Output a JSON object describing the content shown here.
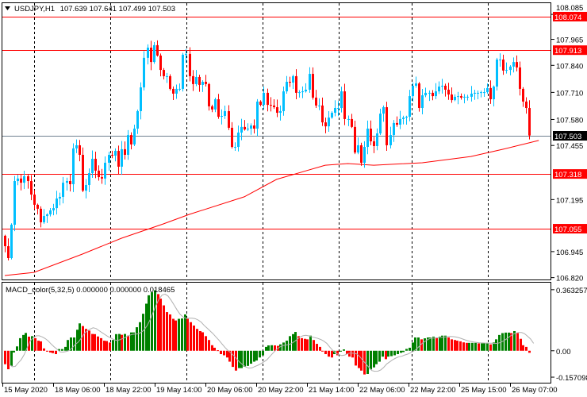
{
  "header": {
    "symbol": "USDJPY,H1",
    "open": "107.639",
    "high": "107.641",
    "low": "107.499",
    "close": "107.503"
  },
  "price_axis": {
    "ticks": [
      "108.085",
      "107.965",
      "107.840",
      "107.710",
      "107.580",
      "107.455",
      "107.195",
      "106.945",
      "106.820"
    ]
  },
  "levels": [
    {
      "price": "108.074"
    },
    {
      "price": "107.913"
    },
    {
      "price": "107.318"
    },
    {
      "price": "107.055"
    }
  ],
  "current_price": "107.503",
  "indicator": {
    "label": "MACD_color(5,32,5) 0.000000 0.000000 0.018465",
    "axis": [
      {
        "label": "0.363257",
        "value": 0.363257
      },
      {
        "label": "0.00",
        "value": 0
      },
      {
        "label": "-0.157098",
        "value": -0.157098
      }
    ]
  },
  "time_axis": [
    "15 May 2020",
    "18 May 06:00",
    "18 May 22:00",
    "19 May 14:00",
    "20 May 06:00",
    "20 May 22:00",
    "21 May 14:00",
    "22 May 06:00",
    "22 May 22:00",
    "25 May 15:00",
    "26 May 07:00"
  ],
  "colors": {
    "bull": "#00bfff",
    "bear": "#ff0000",
    "level": "#ff0000",
    "ma": "#ff0000",
    "current": "#708090",
    "macd_up": "#008000",
    "macd_down": "#ff0000",
    "signal": "#b0b0b0"
  },
  "chart_data": {
    "type": "candlestick",
    "title": "USDJPY,H1",
    "ylim": [
      106.811,
      108.154
    ],
    "closes": [
      106.971,
      106.914,
      107.074,
      107.284,
      107.296,
      107.276,
      107.307,
      107.284,
      107.219,
      107.17,
      107.151,
      107.086,
      107.116,
      107.124,
      107.143,
      107.154,
      107.2,
      107.208,
      107.276,
      107.284,
      107.269,
      107.441,
      107.456,
      107.41,
      107.238,
      107.265,
      107.322,
      107.391,
      107.334,
      107.303,
      107.296,
      107.372,
      107.41,
      107.406,
      107.429,
      107.353,
      107.437,
      107.41,
      107.505,
      107.46,
      107.536,
      107.62,
      107.734,
      107.876,
      107.925,
      107.856,
      107.937,
      107.887,
      107.818,
      107.788,
      107.788,
      107.727,
      107.704,
      107.727,
      107.727,
      107.891,
      107.895,
      107.788,
      107.75,
      107.784,
      107.746,
      107.761,
      107.75,
      107.643,
      107.628,
      107.677,
      107.593,
      107.597,
      107.62,
      107.54,
      107.448,
      107.448,
      107.517,
      107.544,
      107.532,
      107.536,
      107.551,
      107.536,
      107.666,
      107.65,
      107.708,
      107.65,
      107.647,
      107.639,
      107.612,
      107.62,
      107.715,
      107.761,
      107.757,
      107.788,
      107.708,
      107.711,
      107.715,
      107.723,
      107.799,
      107.685,
      107.647,
      107.647,
      107.566,
      107.547,
      107.589,
      107.612,
      107.635,
      107.635,
      107.715,
      107.582,
      107.582,
      107.544,
      107.421,
      107.456,
      107.372,
      107.448,
      107.536,
      107.475,
      107.452,
      107.513,
      107.608,
      107.639,
      107.456,
      107.505,
      107.563,
      107.555,
      107.582,
      107.589,
      107.593,
      107.692,
      107.742,
      107.753,
      107.635,
      107.696,
      107.708,
      107.708,
      107.692,
      107.715,
      107.738,
      107.742,
      107.723,
      107.7,
      107.673,
      107.689,
      107.692,
      107.685,
      107.689,
      107.689,
      107.704,
      107.708,
      107.708,
      107.711,
      107.711,
      107.731,
      107.677,
      107.738,
      107.868,
      107.868,
      107.815,
      107.818,
      107.834,
      107.856,
      107.83,
      107.727,
      107.666,
      107.635,
      107.503
    ],
    "ma_points": [
      [
        0,
        106.83
      ],
      [
        9,
        106.845
      ],
      [
        24,
        106.933
      ],
      [
        36,
        107.009
      ],
      [
        49,
        107.078
      ],
      [
        57,
        107.124
      ],
      [
        74,
        107.208
      ],
      [
        84,
        107.292
      ],
      [
        99,
        107.36
      ],
      [
        106,
        107.368
      ],
      [
        114,
        107.36
      ],
      [
        129,
        107.372
      ],
      [
        144,
        107.402
      ],
      [
        154,
        107.437
      ],
      [
        165,
        107.479
      ]
    ],
    "macd_ylim": [
      -0.19,
      0.405
    ],
    "macd_hist": [
      -0.08,
      -0.11,
      -0.09,
      -0.01,
      0.026,
      0.075,
      0.094,
      0.106,
      0.084,
      0.087,
      0.075,
      0.06,
      0.056,
      0.014,
      -0.005,
      -0.01,
      -0.014,
      -0.02,
      0.01,
      0.01,
      0.023,
      0.064,
      0.079,
      0.079,
      0.125,
      0.163,
      0.147,
      0.13,
      0.12,
      0.1,
      0.099,
      0.085,
      0.075,
      0.06,
      0.058,
      0.049,
      0.064,
      0.099,
      0.1,
      0.095,
      0.1,
      0.09,
      0.109,
      0.109,
      0.14,
      0.17,
      0.22,
      0.28,
      0.33,
      0.348,
      0.36,
      0.337,
      0.31,
      0.27,
      0.23,
      0.216,
      0.19,
      0.18,
      0.19,
      0.192,
      0.216,
      0.19,
      0.17,
      0.15,
      0.13,
      0.117,
      0.11,
      0.087,
      0.064,
      0.033,
      0.018,
      0.003,
      -0.02,
      -0.027,
      -0.04,
      -0.065,
      -0.096,
      -0.118,
      -0.103,
      -0.103,
      -0.095,
      -0.09,
      -0.077,
      -0.065,
      -0.058,
      -0.04,
      -0.027,
      0.023,
      0.032,
      0.033,
      0.032,
      0.029,
      0.038,
      0.049,
      0.06,
      0.087,
      0.099,
      0.112,
      0.087,
      0.075,
      0.071,
      0.068,
      0.09,
      0.064,
      0.041,
      0.023,
      0.0,
      -0.02,
      -0.035,
      -0.04,
      -0.02,
      -0.027,
      -0.005,
      0.008,
      -0.02,
      -0.035,
      -0.04,
      -0.088,
      -0.103,
      -0.118,
      -0.141,
      -0.138,
      -0.111,
      -0.099,
      -0.08,
      -0.065,
      -0.035,
      -0.05,
      -0.035,
      -0.032,
      -0.027,
      -0.02,
      -0.012,
      -0.008,
      0.011,
      0.018,
      0.049,
      0.079,
      0.079,
      0.068,
      0.074,
      0.079,
      0.079,
      0.084,
      0.079,
      0.084,
      0.09,
      0.09,
      0.079,
      0.068,
      0.064,
      0.06,
      0.056,
      0.05,
      0.047,
      0.047,
      0.047,
      0.047,
      0.044,
      0.044,
      0.044,
      0.047,
      0.038,
      0.049,
      0.068,
      0.094,
      0.105,
      0.108,
      0.108,
      0.105,
      0.117,
      0.105,
      0.071,
      0.033,
      0.023,
      -0.012
    ]
  }
}
